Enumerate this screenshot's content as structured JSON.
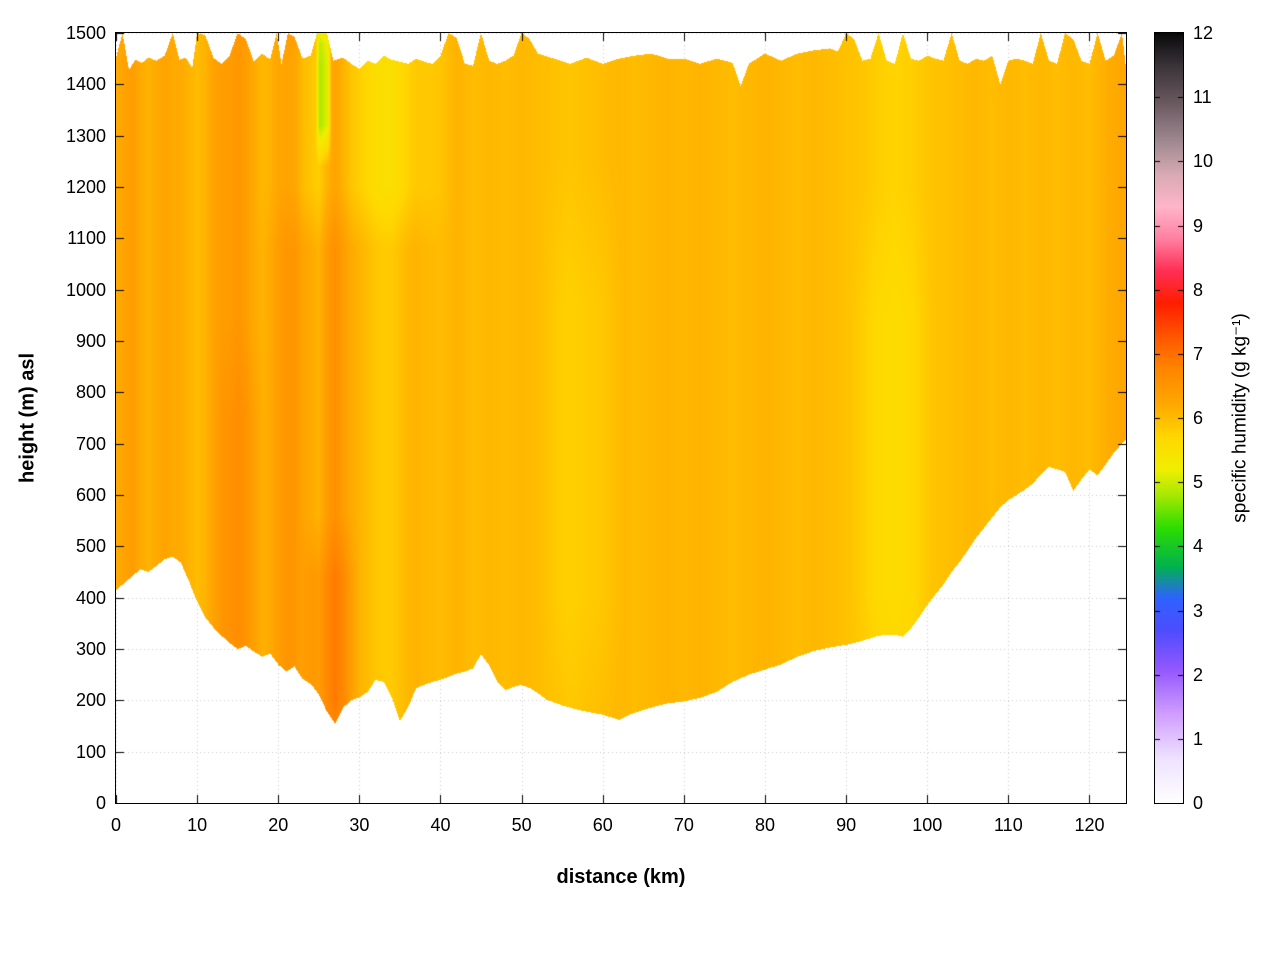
{
  "figure": {
    "xlabel": "distance (km)",
    "ylabel": "height (m) asl",
    "colorbar_label": "specific humidity (g kg⁻¹)"
  },
  "chart_data": {
    "type": "heatmap",
    "title": "",
    "xlabel": "distance (km)",
    "ylabel": "height (m) asl",
    "colorbar_label": "specific humidity (g kg⁻¹)",
    "xlim": [
      0,
      124.5
    ],
    "ylim": [
      0,
      1500
    ],
    "clim": [
      0,
      12
    ],
    "grid": true,
    "x_ticks": [
      0,
      10,
      20,
      30,
      40,
      50,
      60,
      70,
      80,
      90,
      100,
      110,
      120
    ],
    "y_ticks": [
      0,
      100,
      200,
      300,
      400,
      500,
      600,
      700,
      800,
      900,
      1000,
      1100,
      1200,
      1300,
      1400,
      1500
    ],
    "colorbar_ticks": [
      0,
      1,
      2,
      3,
      4,
      5,
      6,
      7,
      8,
      9,
      10,
      11,
      12
    ],
    "colormap": [
      [
        0,
        "#ffffff"
      ],
      [
        0.7,
        "#efe2ff"
      ],
      [
        1.4,
        "#d09dff"
      ],
      [
        2.1,
        "#9257ff"
      ],
      [
        2.7,
        "#4d4dff"
      ],
      [
        3.2,
        "#2e62ff"
      ],
      [
        3.7,
        "#00b34d"
      ],
      [
        4.3,
        "#2edd00"
      ],
      [
        4.8,
        "#a6e800"
      ],
      [
        5.2,
        "#f0ee00"
      ],
      [
        5.7,
        "#ffd800"
      ],
      [
        6.2,
        "#ffaa00"
      ],
      [
        6.8,
        "#ff8300"
      ],
      [
        7.3,
        "#ff5300"
      ],
      [
        7.8,
        "#ff1e00"
      ],
      [
        8.3,
        "#ff2e55"
      ],
      [
        8.8,
        "#ff80a2"
      ],
      [
        9.3,
        "#ffb5ca"
      ],
      [
        9.8,
        "#d9aab4"
      ],
      [
        10.3,
        "#a28a92"
      ],
      [
        10.9,
        "#6b5b61"
      ],
      [
        11.5,
        "#3a3338"
      ],
      [
        12,
        "#0a0a0a"
      ]
    ],
    "terrain_profile": [
      [
        0,
        415
      ],
      [
        1,
        428
      ],
      [
        2,
        442
      ],
      [
        3,
        455
      ],
      [
        4,
        450
      ],
      [
        5,
        462
      ],
      [
        6,
        475
      ],
      [
        7,
        480
      ],
      [
        8,
        468
      ],
      [
        9,
        432
      ],
      [
        10,
        392
      ],
      [
        11,
        362
      ],
      [
        12,
        342
      ],
      [
        13,
        326
      ],
      [
        14,
        312
      ],
      [
        15,
        300
      ],
      [
        16,
        306
      ],
      [
        17,
        295
      ],
      [
        18,
        285
      ],
      [
        19,
        291
      ],
      [
        20,
        270
      ],
      [
        21,
        256
      ],
      [
        22,
        266
      ],
      [
        23,
        242
      ],
      [
        24,
        232
      ],
      [
        25,
        212
      ],
      [
        26,
        178
      ],
      [
        27,
        155
      ],
      [
        28,
        186
      ],
      [
        29,
        200
      ],
      [
        30,
        206
      ],
      [
        31,
        216
      ],
      [
        32,
        240
      ],
      [
        33,
        236
      ],
      [
        34,
        206
      ],
      [
        35,
        160
      ],
      [
        36,
        186
      ],
      [
        37,
        224
      ],
      [
        38,
        230
      ],
      [
        39,
        236
      ],
      [
        40,
        240
      ],
      [
        41,
        246
      ],
      [
        42,
        252
      ],
      [
        43,
        256
      ],
      [
        44,
        262
      ],
      [
        45,
        290
      ],
      [
        46,
        268
      ],
      [
        47,
        236
      ],
      [
        48,
        220
      ],
      [
        49,
        226
      ],
      [
        50,
        230
      ],
      [
        51,
        224
      ],
      [
        52,
        214
      ],
      [
        53,
        202
      ],
      [
        54,
        196
      ],
      [
        55,
        190
      ],
      [
        56,
        186
      ],
      [
        57,
        181
      ],
      [
        58,
        178
      ],
      [
        59,
        175
      ],
      [
        60,
        172
      ],
      [
        61,
        167
      ],
      [
        62,
        162
      ],
      [
        63,
        170
      ],
      [
        64,
        176
      ],
      [
        65,
        181
      ],
      [
        66,
        186
      ],
      [
        67,
        190
      ],
      [
        68,
        194
      ],
      [
        70,
        198
      ],
      [
        72,
        205
      ],
      [
        74,
        216
      ],
      [
        76,
        236
      ],
      [
        78,
        250
      ],
      [
        80,
        260
      ],
      [
        82,
        270
      ],
      [
        84,
        285
      ],
      [
        86,
        296
      ],
      [
        88,
        303
      ],
      [
        90,
        308
      ],
      [
        92,
        316
      ],
      [
        94,
        326
      ],
      [
        96,
        328
      ],
      [
        97,
        324
      ],
      [
        98,
        340
      ],
      [
        99,
        362
      ],
      [
        100,
        386
      ],
      [
        101,
        406
      ],
      [
        102,
        426
      ],
      [
        103,
        450
      ],
      [
        104,
        470
      ],
      [
        105,
        492
      ],
      [
        106,
        516
      ],
      [
        107,
        536
      ],
      [
        108,
        556
      ],
      [
        109,
        576
      ],
      [
        110,
        590
      ],
      [
        111,
        600
      ],
      [
        112,
        610
      ],
      [
        113,
        622
      ],
      [
        114,
        640
      ],
      [
        115,
        655
      ],
      [
        116,
        650
      ],
      [
        117,
        645
      ],
      [
        118,
        608
      ],
      [
        119,
        630
      ],
      [
        120,
        650
      ],
      [
        121,
        638
      ],
      [
        122,
        660
      ],
      [
        123,
        682
      ],
      [
        124,
        700
      ],
      [
        124.5,
        708
      ]
    ],
    "top_profile": [
      [
        0,
        1452
      ],
      [
        0.8,
        1500
      ],
      [
        1.6,
        1428
      ],
      [
        2.4,
        1448
      ],
      [
        3.2,
        1442
      ],
      [
        4,
        1452
      ],
      [
        5,
        1446
      ],
      [
        6,
        1456
      ],
      [
        7,
        1500
      ],
      [
        7.8,
        1448
      ],
      [
        8.6,
        1452
      ],
      [
        9.4,
        1432
      ],
      [
        10,
        1500
      ],
      [
        11,
        1496
      ],
      [
        12,
        1452
      ],
      [
        13,
        1440
      ],
      [
        14,
        1456
      ],
      [
        15,
        1500
      ],
      [
        16,
        1488
      ],
      [
        17,
        1444
      ],
      [
        18,
        1460
      ],
      [
        19,
        1448
      ],
      [
        19.8,
        1500
      ],
      [
        20.4,
        1440
      ],
      [
        21.2,
        1500
      ],
      [
        22,
        1492
      ],
      [
        23,
        1450
      ],
      [
        24,
        1456
      ],
      [
        24.8,
        1500
      ],
      [
        26,
        1500
      ],
      [
        26.8,
        1446
      ],
      [
        28,
        1452
      ],
      [
        29,
        1440
      ],
      [
        30,
        1430
      ],
      [
        31,
        1446
      ],
      [
        32,
        1440
      ],
      [
        33,
        1456
      ],
      [
        34,
        1448
      ],
      [
        35,
        1444
      ],
      [
        36,
        1440
      ],
      [
        37,
        1450
      ],
      [
        38,
        1444
      ],
      [
        39,
        1440
      ],
      [
        40,
        1456
      ],
      [
        41,
        1500
      ],
      [
        42,
        1490
      ],
      [
        43,
        1440
      ],
      [
        44,
        1436
      ],
      [
        45,
        1500
      ],
      [
        46,
        1446
      ],
      [
        47,
        1440
      ],
      [
        48,
        1446
      ],
      [
        49,
        1456
      ],
      [
        50,
        1500
      ],
      [
        51,
        1488
      ],
      [
        52,
        1460
      ],
      [
        53,
        1455
      ],
      [
        54,
        1450
      ],
      [
        55,
        1445
      ],
      [
        56,
        1440
      ],
      [
        57,
        1446
      ],
      [
        58,
        1452
      ],
      [
        59,
        1446
      ],
      [
        60,
        1440
      ],
      [
        62,
        1450
      ],
      [
        64,
        1456
      ],
      [
        66,
        1460
      ],
      [
        68,
        1450
      ],
      [
        70,
        1450
      ],
      [
        72,
        1440
      ],
      [
        74,
        1450
      ],
      [
        76,
        1442
      ],
      [
        77,
        1396
      ],
      [
        78,
        1440
      ],
      [
        80,
        1460
      ],
      [
        82,
        1446
      ],
      [
        84,
        1460
      ],
      [
        86,
        1466
      ],
      [
        88,
        1470
      ],
      [
        89,
        1464
      ],
      [
        90,
        1500
      ],
      [
        91,
        1488
      ],
      [
        92,
        1446
      ],
      [
        93,
        1450
      ],
      [
        94,
        1500
      ],
      [
        95,
        1446
      ],
      [
        96,
        1440
      ],
      [
        97,
        1500
      ],
      [
        98,
        1450
      ],
      [
        99,
        1446
      ],
      [
        100,
        1456
      ],
      [
        101,
        1450
      ],
      [
        102,
        1446
      ],
      [
        103,
        1500
      ],
      [
        104,
        1446
      ],
      [
        105,
        1440
      ],
      [
        106,
        1450
      ],
      [
        107,
        1446
      ],
      [
        108,
        1456
      ],
      [
        109,
        1400
      ],
      [
        110,
        1446
      ],
      [
        111,
        1450
      ],
      [
        112,
        1446
      ],
      [
        113,
        1440
      ],
      [
        114,
        1500
      ],
      [
        115,
        1446
      ],
      [
        116,
        1440
      ],
      [
        117,
        1500
      ],
      [
        118,
        1488
      ],
      [
        119,
        1446
      ],
      [
        120,
        1440
      ],
      [
        121,
        1500
      ],
      [
        122,
        1446
      ],
      [
        123,
        1456
      ],
      [
        124,
        1500
      ],
      [
        124.5,
        1432
      ]
    ],
    "humidity_profile": [
      [
        0,
        6.2
      ],
      [
        1,
        6.3
      ],
      [
        2,
        6.4
      ],
      [
        3,
        6.2
      ],
      [
        4,
        6.1
      ],
      [
        5,
        6.2
      ],
      [
        6,
        6.3
      ],
      [
        7,
        6.2
      ],
      [
        8,
        6.2
      ],
      [
        9,
        6.1
      ],
      [
        10,
        6.0
      ],
      [
        11,
        6.1
      ],
      [
        12,
        6.3
      ],
      [
        13,
        6.4
      ],
      [
        14,
        6.4
      ],
      [
        15,
        6.5
      ],
      [
        16,
        6.4
      ],
      [
        17,
        6.2
      ],
      [
        18,
        6.1
      ],
      [
        19,
        6.2
      ],
      [
        20,
        6.4
      ],
      [
        21,
        6.5
      ],
      [
        22,
        6.5
      ],
      [
        23,
        6.3
      ],
      [
        24,
        6.2
      ],
      [
        25,
        6.1
      ],
      [
        26,
        6.4
      ],
      [
        27,
        6.6
      ],
      [
        28,
        6.4
      ],
      [
        29,
        6.2
      ],
      [
        30,
        6.1
      ],
      [
        31,
        6.0
      ],
      [
        32,
        5.9
      ],
      [
        33,
        5.85
      ],
      [
        34,
        5.85
      ],
      [
        35,
        5.95
      ],
      [
        36,
        6.05
      ],
      [
        37,
        6.1
      ],
      [
        38,
        6.05
      ],
      [
        40,
        6.0
      ],
      [
        42,
        6.1
      ],
      [
        44,
        6.0
      ],
      [
        46,
        6.05
      ],
      [
        48,
        6.0
      ],
      [
        50,
        6.05
      ],
      [
        52,
        6.0
      ],
      [
        54,
        5.95
      ],
      [
        56,
        5.9
      ],
      [
        58,
        5.95
      ],
      [
        60,
        6.0
      ],
      [
        62,
        6.05
      ],
      [
        64,
        6.0
      ],
      [
        66,
        6.05
      ],
      [
        68,
        6.1
      ],
      [
        70,
        6.05
      ],
      [
        72,
        6.1
      ],
      [
        74,
        6.05
      ],
      [
        76,
        6.0
      ],
      [
        78,
        6.05
      ],
      [
        80,
        6.1
      ],
      [
        82,
        6.05
      ],
      [
        84,
        6.0
      ],
      [
        86,
        6.05
      ],
      [
        88,
        6.0
      ],
      [
        90,
        5.95
      ],
      [
        92,
        5.9
      ],
      [
        94,
        5.8
      ],
      [
        96,
        5.75
      ],
      [
        98,
        5.8
      ],
      [
        100,
        5.9
      ],
      [
        102,
        5.95
      ],
      [
        104,
        6.0
      ],
      [
        106,
        6.05
      ],
      [
        108,
        6.0
      ],
      [
        110,
        6.05
      ],
      [
        112,
        6.0
      ],
      [
        114,
        6.05
      ],
      [
        116,
        6.0
      ],
      [
        118,
        6.05
      ],
      [
        120,
        6.0
      ],
      [
        122,
        6.15
      ],
      [
        124,
        6.25
      ],
      [
        124.5,
        6.3
      ]
    ],
    "anomalies": [
      {
        "x0": 24.6,
        "x1": 26.6,
        "h0": 1240,
        "h1": 1560,
        "dq": -1.0
      },
      {
        "x0": 17,
        "x1": 42,
        "h0": 1080,
        "h1": 1560,
        "dq": -0.3
      },
      {
        "x0": 22.5,
        "x1": 30,
        "h0": 80,
        "h1": 560,
        "dq": 0.3
      },
      {
        "x0": 12,
        "x1": 18.5,
        "h0": 120,
        "h1": 950,
        "dq": 0.15
      },
      {
        "x0": 52,
        "x1": 63,
        "h0": 120,
        "h1": 1250,
        "dq": -0.12
      },
      {
        "x0": 90,
        "x1": 101,
        "h0": 150,
        "h1": 1200,
        "dq": -0.12
      }
    ],
    "grid_color": "#c9c9c9",
    "border_color": "#000000"
  }
}
